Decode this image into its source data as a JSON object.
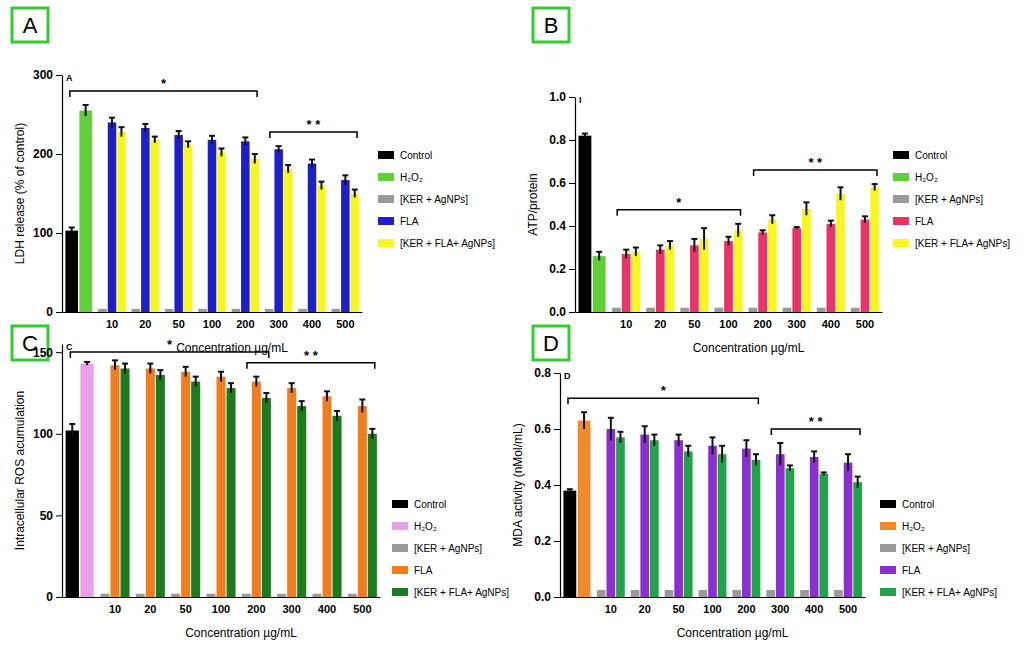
{
  "chart_data": [
    {
      "type": "bar",
      "panel": "A",
      "y_label": "LDH release (% of control)",
      "x_label": "Concentration µg/mL",
      "categories": [
        null,
        "10",
        "20",
        "50",
        "100",
        "200",
        "300",
        "400",
        "500"
      ],
      "ylim": [
        0,
        300
      ],
      "yticks": [
        0,
        100,
        200,
        300
      ],
      "series": [
        {
          "name": "Control",
          "color": "#000000",
          "values": [
            103,
            null,
            null,
            null,
            null,
            null,
            null,
            null,
            null
          ],
          "errors": [
            4,
            null,
            null,
            null,
            null,
            null,
            null,
            null,
            null
          ]
        },
        {
          "name": "H₂O₂",
          "color": "#5fcf3a",
          "values": [
            255,
            null,
            null,
            null,
            null,
            null,
            null,
            null,
            null
          ],
          "errors": [
            7,
            null,
            null,
            null,
            null,
            null,
            null,
            null,
            null
          ]
        },
        {
          "name": "[KER + AgNPs]",
          "color": "#9a9a9a",
          "values": [
            null,
            4,
            4,
            4,
            4,
            4,
            4,
            4,
            4
          ]
        },
        {
          "name": "FLA",
          "color": "#1f1fc8",
          "values": [
            null,
            240,
            233,
            224,
            218,
            216,
            206,
            188,
            167
          ],
          "errors": [
            null,
            6,
            5,
            5,
            5,
            5,
            4,
            5,
            6
          ]
        },
        {
          "name": "[KER + FLA+ AgNPs]",
          "color": "#f7f720",
          "values": [
            null,
            228,
            218,
            212,
            202,
            194,
            181,
            160,
            150
          ],
          "errors": [
            null,
            6,
            4,
            4,
            5,
            6,
            5,
            5,
            5
          ]
        }
      ],
      "annotations": [
        {
          "text": "A"
        },
        {
          "text": "*",
          "from": 0,
          "to": 5
        },
        {
          "text": "* *",
          "from": 6,
          "to": 8
        }
      ]
    },
    {
      "type": "bar",
      "panel": "B",
      "y_label": "ATP/protein",
      "x_label": "Concentration µg/mL",
      "categories": [
        null,
        "10",
        "20",
        "50",
        "100",
        "200",
        "300",
        "400",
        "500"
      ],
      "ylim": [
        0,
        1
      ],
      "yticks": [
        {
          "value": 0,
          "label": "0.0"
        },
        0.2,
        0.4,
        0.6,
        0.8,
        {
          "value": 1,
          "label": "1.0"
        }
      ],
      "series": [
        {
          "name": "Control",
          "color": "#000000",
          "values": [
            0.82,
            null,
            null,
            null,
            null,
            null,
            null,
            null,
            null
          ],
          "errors": [
            0.01,
            null,
            null,
            null,
            null,
            null,
            null,
            null,
            null
          ]
        },
        {
          "name": "H₂O₂",
          "color": "#5fcf3a",
          "values": [
            0.26,
            null,
            null,
            null,
            null,
            null,
            null,
            null,
            null
          ],
          "errors": [
            0.02,
            null,
            null,
            null,
            null,
            null,
            null,
            null,
            null
          ]
        },
        {
          "name": "[KER + AgNPs]",
          "color": "#9a9a9a",
          "values": [
            null,
            0.02,
            0.02,
            0.02,
            0.02,
            0.02,
            0.02,
            0.02,
            0.02
          ]
        },
        {
          "name": "FLA",
          "color": "#e8336b",
          "values": [
            null,
            0.27,
            0.29,
            0.31,
            0.33,
            0.37,
            0.39,
            0.41,
            0.43
          ],
          "errors": [
            null,
            0.02,
            0.02,
            0.03,
            0.02,
            0.01,
            0.005,
            0.015,
            0.015
          ]
        },
        {
          "name": "[KER + FLA+ AgNPs]",
          "color": "#f7f720",
          "values": [
            null,
            0.28,
            0.31,
            0.34,
            0.38,
            0.43,
            0.48,
            0.55,
            0.58
          ],
          "errors": [
            null,
            0.02,
            0.02,
            0.05,
            0.03,
            0.02,
            0.03,
            0.03,
            0.015
          ]
        }
      ],
      "annotations": [
        {
          "text": "I"
        },
        {
          "text": "*",
          "from": 1,
          "to": 4
        },
        {
          "text": "* *",
          "from": 5,
          "to": 8
        }
      ]
    },
    {
      "type": "bar",
      "panel": "C",
      "y_label": "Intracellular ROS acumulation",
      "x_label": "Concentration µg/mL",
      "categories": [
        null,
        "10",
        "20",
        "50",
        "100",
        "200",
        "300",
        "400",
        "500"
      ],
      "ylim": [
        0,
        155
      ],
      "yticks": [
        0,
        50,
        100,
        150
      ],
      "series": [
        {
          "name": "Control",
          "color": "#000000",
          "values": [
            102,
            null,
            null,
            null,
            null,
            null,
            null,
            null,
            null
          ],
          "errors": [
            4,
            null,
            null,
            null,
            null,
            null,
            null,
            null,
            null
          ]
        },
        {
          "name": "H₂O₂",
          "color": "#e8a0e8",
          "values": [
            143,
            null,
            null,
            null,
            null,
            null,
            null,
            null,
            null
          ],
          "errors": [
            1,
            null,
            null,
            null,
            null,
            null,
            null,
            null,
            null
          ]
        },
        {
          "name": "[KER + AgNPs]",
          "color": "#9a9a9a",
          "values": [
            null,
            2,
            2,
            2,
            2,
            2,
            2,
            2,
            2
          ]
        },
        {
          "name": "FLA",
          "color": "#f07d1e",
          "values": [
            null,
            142,
            140,
            138,
            135,
            132,
            128,
            123,
            117
          ],
          "errors": [
            null,
            3,
            3,
            3,
            3,
            3,
            3,
            3,
            4
          ]
        },
        {
          "name": "[KER + FLA+ AgNPs]",
          "color": "#1d7a1d",
          "values": [
            null,
            140,
            136,
            132,
            128,
            122,
            117,
            111,
            100
          ],
          "errors": [
            null,
            3,
            3,
            3,
            3,
            3,
            3,
            3,
            3
          ]
        }
      ],
      "annotations": [
        {
          "text": "C"
        },
        {
          "text": "*",
          "from": 0,
          "to": 5
        },
        {
          "text": "* *",
          "from": 5,
          "to": 8
        }
      ]
    },
    {
      "type": "bar",
      "panel": "D",
      "y_label": "MDA activity (nMol/mL)",
      "x_label": "Concentration µg/mL",
      "categories": [
        null,
        "10",
        "20",
        "50",
        "100",
        "200",
        "300",
        "400",
        "500"
      ],
      "ylim": [
        0,
        0.8
      ],
      "yticks": [
        {
          "value": 0,
          "label": "0.0"
        },
        0.2,
        0.4,
        0.6,
        0.8
      ],
      "series": [
        {
          "name": "Control",
          "color": "#000000",
          "values": [
            0.38,
            null,
            null,
            null,
            null,
            null,
            null,
            null,
            null
          ],
          "errors": [
            0.005,
            null,
            null,
            null,
            null,
            null,
            null,
            null,
            null
          ]
        },
        {
          "name": "H₂O₂",
          "color": "#f08a2a",
          "values": [
            0.63,
            null,
            null,
            null,
            null,
            null,
            null,
            null,
            null
          ],
          "errors": [
            0.03,
            null,
            null,
            null,
            null,
            null,
            null,
            null,
            null
          ]
        },
        {
          "name": "[KER + AgNPs]",
          "color": "#9a9a9a",
          "values": [
            null,
            0.025,
            0.025,
            0.025,
            0.025,
            0.025,
            0.025,
            0.025,
            0.025
          ]
        },
        {
          "name": "FLA",
          "color": "#8b2fd3",
          "values": [
            null,
            0.6,
            0.58,
            0.56,
            0.54,
            0.53,
            0.51,
            0.5,
            0.48
          ],
          "errors": [
            null,
            0.04,
            0.03,
            0.02,
            0.03,
            0.03,
            0.04,
            0.02,
            0.03
          ]
        },
        {
          "name": "[KER + FLA+ AgNPs]",
          "color": "#22a34a",
          "values": [
            null,
            0.57,
            0.56,
            0.52,
            0.51,
            0.49,
            0.46,
            0.44,
            0.41
          ],
          "errors": [
            null,
            0.02,
            0.02,
            0.02,
            0.03,
            0.02,
            0.01,
            0.005,
            0.02
          ]
        }
      ],
      "annotations": [
        {
          "text": "D"
        },
        {
          "text": "*",
          "from": 0,
          "to": 5
        },
        {
          "text": "* *",
          "from": 6,
          "to": 8
        }
      ]
    }
  ]
}
